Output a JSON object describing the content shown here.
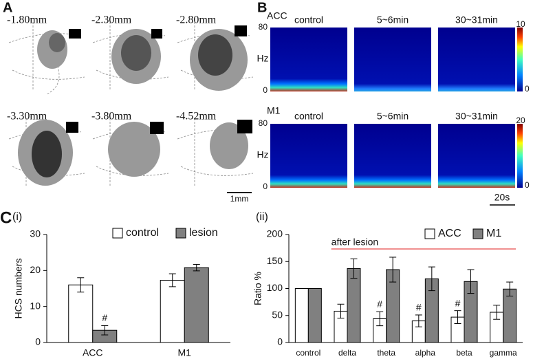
{
  "panel_a": {
    "letter": "A",
    "sections": [
      "-1.80mm",
      "-2.30mm",
      "-2.80mm",
      "-3.30mm",
      "-3.80mm",
      "-4.52mm"
    ],
    "scale_bar": "1mm"
  },
  "panel_b": {
    "letter": "B",
    "columns": [
      "control",
      "5~6min",
      "30~31min"
    ],
    "rows": [
      {
        "region": "ACC",
        "y_axis_label": "Hz",
        "ylim": [
          0,
          80
        ],
        "colorbar": [
          0,
          10
        ]
      },
      {
        "region": "M1",
        "y_axis_label": "Hz",
        "ylim": [
          0,
          80
        ],
        "colorbar": [
          0,
          20
        ]
      }
    ],
    "scale_bar": "20s"
  },
  "panel_c": {
    "letter": "C"
  },
  "chart_data": [
    {
      "type": "bar",
      "label": "(i)",
      "y_axis_label": "HCS numbers",
      "categories": [
        "ACC",
        "M1"
      ],
      "series": [
        {
          "name": "control",
          "color": "#ffffff",
          "values": [
            16,
            17.3
          ],
          "errors": [
            2,
            1.8
          ],
          "annotations": [
            null,
            null
          ]
        },
        {
          "name": "lesion",
          "color": "#808080",
          "values": [
            3.4,
            20.8
          ],
          "errors": [
            1.3,
            0.9
          ],
          "annotations": [
            "#",
            null
          ]
        }
      ],
      "ylim": [
        0,
        30
      ],
      "yticks": [
        0,
        10,
        20,
        30
      ],
      "legend": "top"
    },
    {
      "type": "bar",
      "label": "(ii)",
      "y_axis_label": "Ratio %",
      "categories": [
        "control",
        "delta",
        "theta",
        "alpha",
        "beta",
        "gamma"
      ],
      "series": [
        {
          "name": "ACC",
          "color": "#ffffff",
          "values": [
            100,
            58,
            44,
            40,
            47,
            56
          ],
          "errors": [
            0,
            13,
            13,
            11,
            12,
            13
          ],
          "annotations": [
            null,
            null,
            "#",
            "#",
            "#",
            null
          ]
        },
        {
          "name": "M1",
          "color": "#808080",
          "values": [
            100,
            137,
            135,
            118,
            113,
            99
          ],
          "errors": [
            0,
            18,
            23,
            22,
            22,
            13
          ],
          "annotations": [
            null,
            null,
            null,
            null,
            null,
            null
          ]
        }
      ],
      "bracket_label": "after lesion",
      "bracket_color": "#e02020",
      "ylim": [
        0,
        200
      ],
      "yticks": [
        0,
        50,
        100,
        150,
        200
      ],
      "legend": "top-right"
    }
  ]
}
